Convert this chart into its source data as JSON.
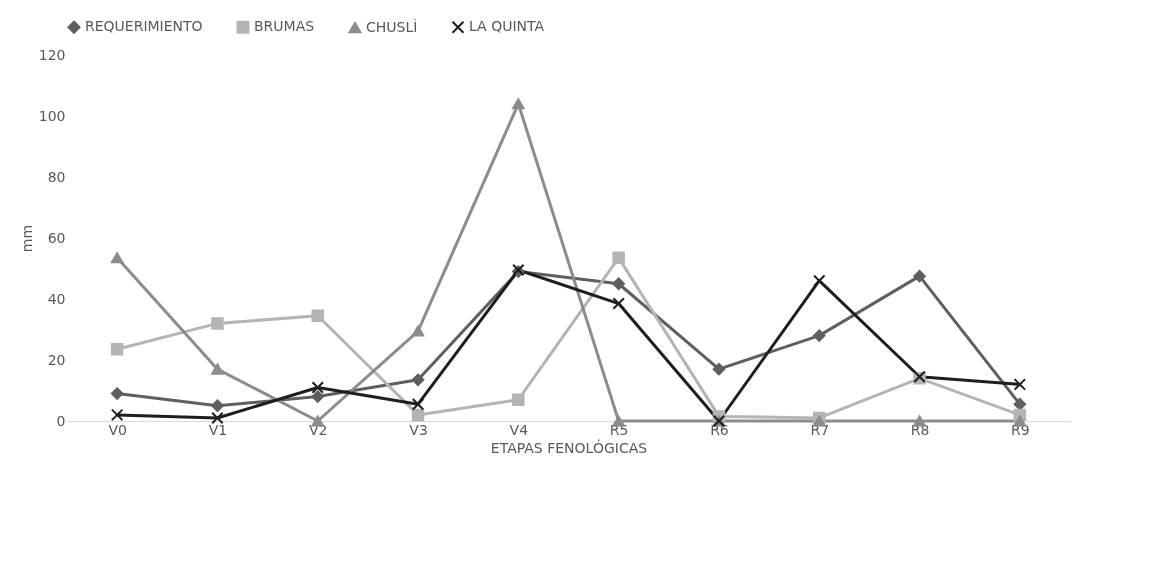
{
  "chart_data": {
    "type": "line",
    "xlabel": "ETAPAS FENOLÓGICAS",
    "ylabel": "mm",
    "categories": [
      "V0",
      "V1",
      "V2",
      "V3",
      "V4",
      "R5",
      "R6",
      "R7",
      "R8",
      "R9"
    ],
    "series": [
      {
        "name": "REQUERIMIENTO",
        "color": "#5f5f5f",
        "marker": "diamond",
        "values": [
          9,
          5,
          8,
          13.5,
          49,
          45,
          17,
          28,
          47.5,
          5.5
        ]
      },
      {
        "name": "BRUMAS",
        "color": "#b4b4b4",
        "marker": "square",
        "values": [
          23.5,
          32,
          34.5,
          2,
          7,
          53.5,
          1.5,
          1,
          14,
          2
        ]
      },
      {
        "name": "CHUSLÌ",
        "color": "#8c8c8c",
        "marker": "triangle",
        "values": [
          53.5,
          17,
          0,
          29.5,
          104,
          0,
          0,
          0,
          0,
          0
        ]
      },
      {
        "name": "LA QUINTA",
        "color": "#1e1e1e",
        "marker": "cross",
        "values": [
          2,
          1,
          11,
          5.5,
          49.5,
          38.5,
          0,
          46,
          14.5,
          12
        ]
      }
    ],
    "ylim": [
      0,
      120
    ],
    "yticks": [
      0,
      20,
      40,
      60,
      80,
      100,
      120
    ],
    "grid": false,
    "legend": "top",
    "line_style": "solid"
  }
}
